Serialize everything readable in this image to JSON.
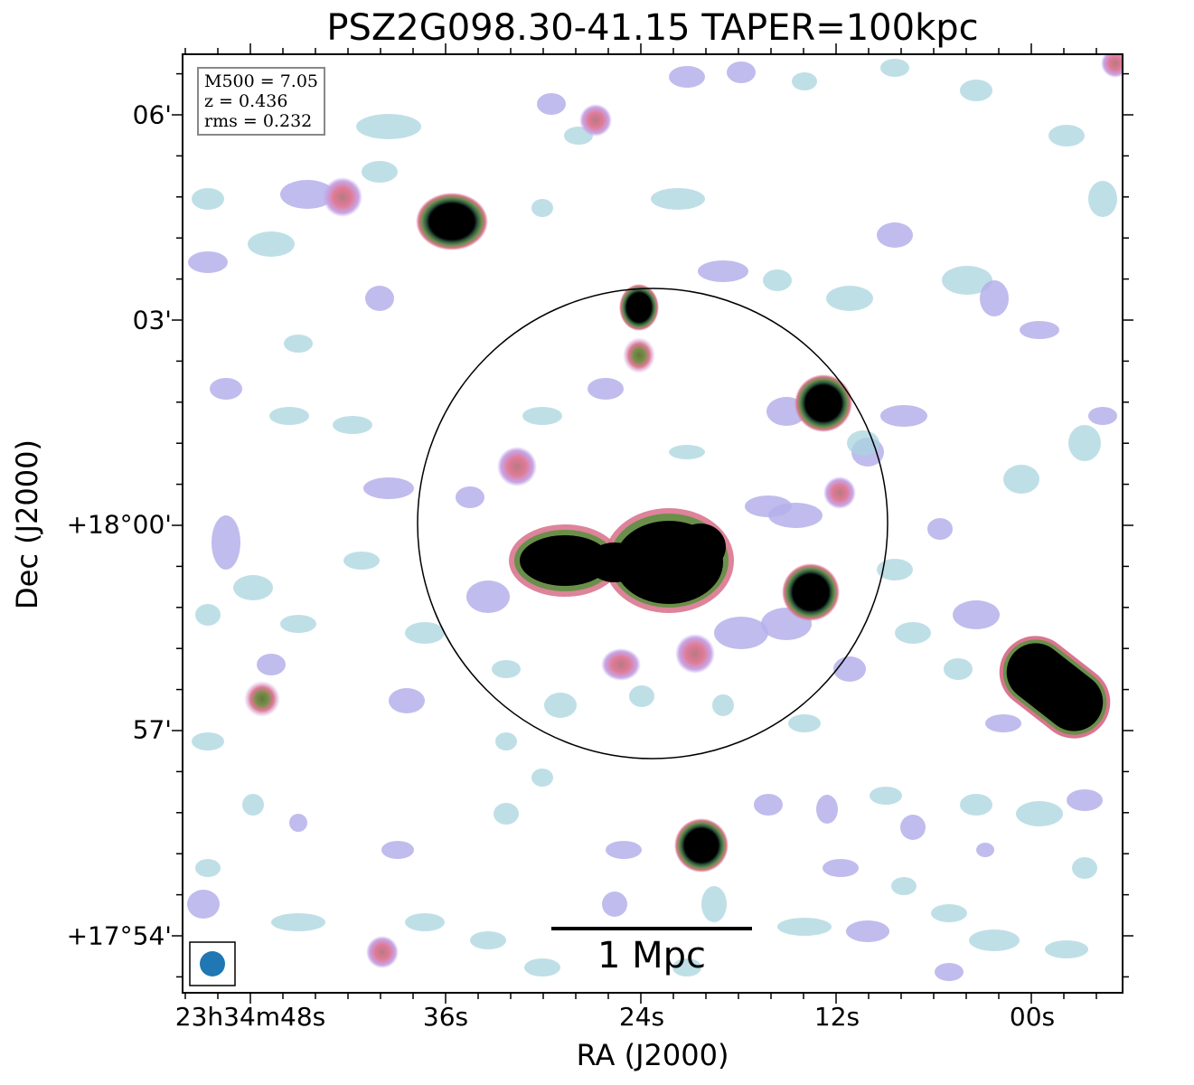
{
  "title": "PSZ2G098.30-41.15 TAPER=100kpc",
  "info_box": {
    "lines": [
      "M500 = 7.05",
      "z = 0.436",
      "rms = 0.232"
    ]
  },
  "axes": {
    "xlabel": "RA (J2000)",
    "ylabel": "Dec (J2000)",
    "xticks": [
      "23h34m48s",
      "36s",
      "24s",
      "12s",
      "00s"
    ],
    "yticks": [
      "06'",
      "03'",
      "+18°00'",
      "57'",
      "+17°54'"
    ]
  },
  "scale_bar": {
    "label": "1 Mpc"
  },
  "beam": {
    "color": "#1f77b4"
  },
  "colors": {
    "faint": "#a9d4df",
    "mid": "#b5b0ea",
    "pink": "#e07a96",
    "green": "#6a8f4a",
    "core": "#000000"
  }
}
